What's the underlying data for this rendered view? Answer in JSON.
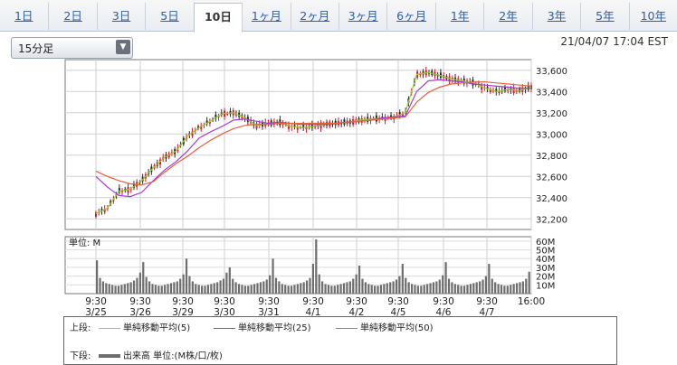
{
  "tabs": [
    {
      "label": "1日"
    },
    {
      "label": "2日"
    },
    {
      "label": "3日"
    },
    {
      "label": "5日"
    },
    {
      "label": "10日"
    },
    {
      "label": "1ヶ月"
    },
    {
      "label": "2ヶ月"
    },
    {
      "label": "3ヶ月"
    },
    {
      "label": "6ヶ月"
    },
    {
      "label": "1年"
    },
    {
      "label": "2年"
    },
    {
      "label": "3年"
    },
    {
      "label": "5年"
    },
    {
      "label": "10年"
    }
  ],
  "active_tab": "10日",
  "interval_select": {
    "value": "15分足"
  },
  "timestamp": "21/04/07 17:04 EST",
  "legend": {
    "upper_label": "上段:",
    "lower_label": "下段:",
    "ma5": "単純移動平均(5)",
    "ma25": "単純移動平均(25)",
    "ma50": "単純移動平均(50)",
    "volume": "出来高 単位:(M株/口/枚)"
  },
  "colors": {
    "ma5": "#9acd32",
    "ma25": "#a43ad8",
    "ma50": "#e8603c",
    "volume": "#6e6e6e",
    "up": "#d8182a",
    "down": "#2a2a2a"
  },
  "chart_data": [
    {
      "type": "line",
      "panel": "price",
      "ylim": [
        32100,
        33700
      ],
      "y_ticks": [
        "33,600",
        "33,400",
        "33,200",
        "33,000",
        "32,800",
        "32,600",
        "32,400",
        "32,200"
      ],
      "x_tick_times": [
        "9:30",
        "9:30",
        "9:30",
        "9:30",
        "9:30",
        "9:30",
        "9:30",
        "9:30",
        "9:30",
        "9:30",
        "16:00"
      ],
      "x_tick_dates": [
        "3/25",
        "3/26",
        "3/29",
        "3/30",
        "3/31",
        "4/1",
        "4/2",
        "4/5",
        "4/6",
        "4/7",
        ""
      ],
      "series": [
        {
          "name": "単純移動平均(5)",
          "key": "ma5",
          "values": [
            32250,
            32300,
            32460,
            32480,
            32560,
            32680,
            32780,
            32840,
            32980,
            33060,
            33120,
            33190,
            33200,
            33150,
            33080,
            33100,
            33110,
            33070,
            33060,
            33070,
            33090,
            33100,
            33110,
            33130,
            33140,
            33150,
            33160,
            33200,
            33560,
            33580,
            33550,
            33520,
            33500,
            33480,
            33430,
            33400,
            33420,
            33410,
            33440
          ]
        },
        {
          "name": "単純移動平均(25)",
          "key": "ma25",
          "values": [
            32600,
            32500,
            32420,
            32410,
            32450,
            32560,
            32660,
            32740,
            32840,
            32960,
            33020,
            33070,
            33130,
            33140,
            33120,
            33100,
            33110,
            33100,
            33090,
            33090,
            33090,
            33100,
            33110,
            33120,
            33130,
            33150,
            33160,
            33170,
            33400,
            33500,
            33510,
            33500,
            33490,
            33470,
            33460,
            33450,
            33440,
            33430,
            33430
          ]
        },
        {
          "name": "単純移動平均(50)",
          "key": "ma50",
          "values": [
            32650,
            32600,
            32560,
            32530,
            32520,
            32550,
            32640,
            32720,
            32790,
            32870,
            32940,
            33000,
            33050,
            33080,
            33090,
            33090,
            33100,
            33100,
            33100,
            33100,
            33100,
            33100,
            33110,
            33120,
            33130,
            33140,
            33150,
            33160,
            33300,
            33390,
            33440,
            33470,
            33480,
            33490,
            33490,
            33480,
            33470,
            33460,
            33450
          ]
        }
      ]
    },
    {
      "type": "bar",
      "panel": "volume",
      "ylabel": "単位: M",
      "ylim": [
        0,
        65
      ],
      "y_ticks": [
        "60M",
        "50M",
        "40M",
        "30M",
        "20M",
        "10M"
      ],
      "values": [
        38,
        18,
        14,
        12,
        11,
        10,
        9,
        9,
        10,
        11,
        12,
        13,
        15,
        18,
        24,
        36,
        19,
        14,
        11,
        10,
        9,
        9,
        10,
        11,
        12,
        13,
        14,
        17,
        22,
        40,
        20,
        14,
        11,
        10,
        9,
        9,
        10,
        11,
        12,
        13,
        15,
        17,
        24,
        30,
        17,
        13,
        11,
        10,
        9,
        9,
        10,
        11,
        12,
        13,
        14,
        16,
        21,
        40,
        18,
        14,
        11,
        10,
        9,
        9,
        10,
        11,
        12,
        13,
        15,
        18,
        34,
        62,
        22,
        14,
        11,
        10,
        9,
        9,
        10,
        11,
        12,
        13,
        14,
        17,
        22,
        32,
        17,
        13,
        11,
        10,
        9,
        9,
        10,
        11,
        12,
        13,
        14,
        16,
        20,
        34,
        18,
        13,
        11,
        10,
        9,
        9,
        10,
        11,
        12,
        13,
        14,
        16,
        21,
        36,
        17,
        13,
        11,
        10,
        9,
        9,
        10,
        11,
        12,
        13,
        14,
        16,
        20,
        34,
        17,
        13,
        11,
        10,
        9,
        9,
        10,
        11,
        12,
        13,
        14,
        17,
        25
      ]
    }
  ]
}
